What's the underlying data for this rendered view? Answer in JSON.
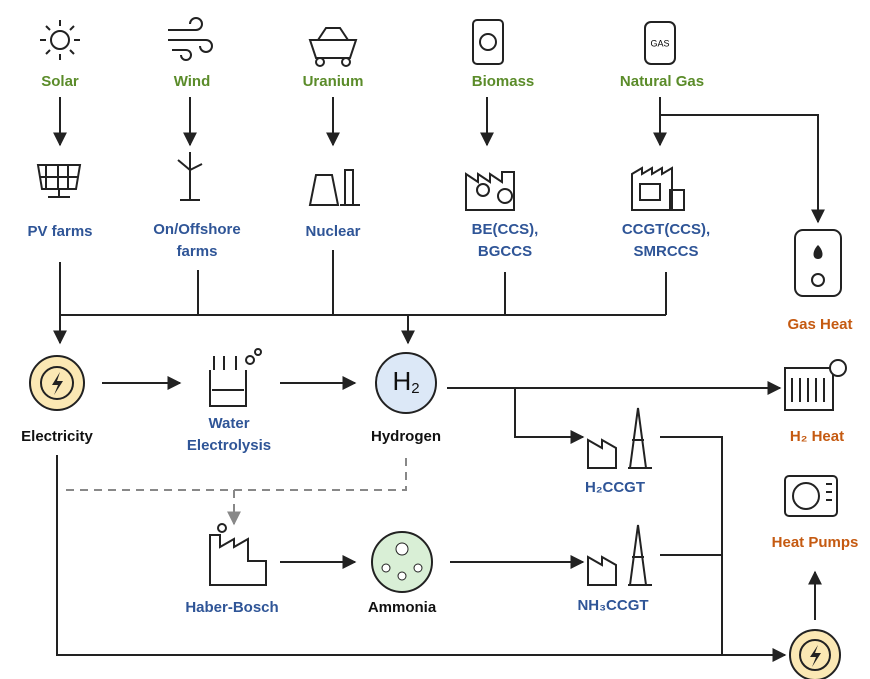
{
  "sources": [
    {
      "label": "Solar"
    },
    {
      "label": "Wind"
    },
    {
      "label": "Uranium"
    },
    {
      "label": "Biomass"
    },
    {
      "label": "Natural Gas"
    }
  ],
  "technologies": [
    {
      "lines": [
        "PV farms"
      ]
    },
    {
      "lines": [
        "On/Offshore",
        "farms"
      ]
    },
    {
      "lines": [
        "Nuclear"
      ]
    },
    {
      "lines": [
        "BE(CCS),",
        "BGCCS"
      ]
    },
    {
      "lines": [
        "CCGT(CCS),",
        "SMRCCS"
      ]
    }
  ],
  "carriers": [
    {
      "label": "Electricity"
    },
    {
      "label": "Hydrogen"
    },
    {
      "label": "Ammonia"
    }
  ],
  "conversions": [
    {
      "lines": [
        "Water",
        "Electrolysis"
      ]
    },
    {
      "lines": [
        "H₂CCGT"
      ]
    },
    {
      "lines": [
        "Haber-Bosch"
      ]
    },
    {
      "lines": [
        "NH₃CCGT"
      ]
    }
  ],
  "end_uses": [
    {
      "label": "Gas Heat"
    },
    {
      "label": "H₂ Heat"
    },
    {
      "label": "Heat Pumps"
    }
  ]
}
